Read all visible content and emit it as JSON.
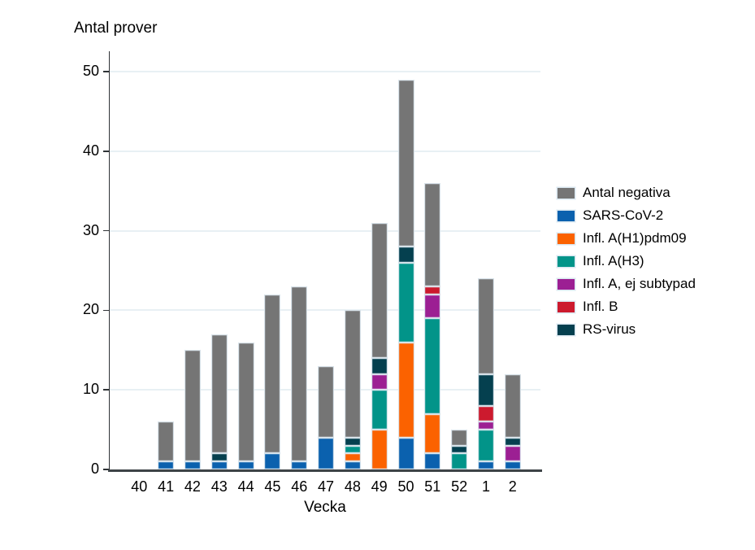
{
  "title": "Antal prover",
  "xlabel": "Vecka",
  "colors": {
    "gray": "#757575",
    "blue": "#0b61ae",
    "orange": "#fb6200",
    "teal": "#029489",
    "purple": "#9c1f93",
    "red": "#cc1a2e",
    "navy": "#05404f",
    "gridline": "#e8f0f4",
    "axis_y": "#2f3336",
    "axis_x": "#3d4347",
    "tick": "#2f3336",
    "text": "#000000"
  },
  "legend": [
    {
      "label": "Antal negativa",
      "color_key": "gray"
    },
    {
      "label": "SARS-CoV-2",
      "color_key": "blue"
    },
    {
      "label": "Infl. A(H1)pdm09",
      "color_key": "orange"
    },
    {
      "label": "Infl. A(H3)",
      "color_key": "teal"
    },
    {
      "label": "Infl. A, ej subtypad",
      "color_key": "purple"
    },
    {
      "label": "Infl. B",
      "color_key": "red"
    },
    {
      "label": "RS-virus",
      "color_key": "navy"
    }
  ],
  "chart_data": {
    "type": "bar",
    "stacked": true,
    "title": "Antal prover",
    "xlabel": "Vecka",
    "ylabel": "",
    "ylim": [
      0,
      50
    ],
    "yticks": [
      0,
      10,
      20,
      30,
      40,
      50
    ],
    "grid": true,
    "legend_position": "right",
    "categories": [
      "40",
      "41",
      "42",
      "43",
      "44",
      "45",
      "46",
      "47",
      "48",
      "49",
      "50",
      "51",
      "52",
      "1",
      "2"
    ],
    "series": [
      {
        "name": "SARS-CoV-2",
        "color_key": "blue",
        "values": [
          0,
          1,
          1,
          1,
          1,
          2,
          1,
          4,
          1,
          0,
          4,
          2,
          0,
          1,
          1
        ]
      },
      {
        "name": "Infl. A(H1)pdm09",
        "color_key": "orange",
        "values": [
          0,
          0,
          0,
          0,
          0,
          0,
          0,
          0,
          1,
          5,
          12,
          5,
          0,
          0,
          0
        ]
      },
      {
        "name": "Infl. A(H3)",
        "color_key": "teal",
        "values": [
          0,
          0,
          0,
          0,
          0,
          0,
          0,
          0,
          1,
          5,
          10,
          12,
          2,
          4,
          0
        ]
      },
      {
        "name": "Infl. A, ej subtypad",
        "color_key": "purple",
        "values": [
          0,
          0,
          0,
          0,
          0,
          0,
          0,
          0,
          0,
          2,
          0,
          3,
          0,
          1,
          2
        ]
      },
      {
        "name": "Infl. B",
        "color_key": "red",
        "values": [
          0,
          0,
          0,
          0,
          0,
          0,
          0,
          0,
          0,
          0,
          0,
          1,
          0,
          2,
          0
        ]
      },
      {
        "name": "RS-virus",
        "color_key": "navy",
        "values": [
          0,
          0,
          0,
          1,
          0,
          0,
          0,
          0,
          1,
          2,
          2,
          0,
          1,
          4,
          1
        ]
      },
      {
        "name": "Antal negativa",
        "color_key": "gray",
        "values": [
          0,
          5,
          14,
          15,
          15,
          20,
          22,
          9,
          16,
          17,
          21,
          13,
          2,
          12,
          8
        ]
      }
    ],
    "totals": [
      0,
      6,
      15,
      17,
      16,
      22,
      23,
      13,
      20,
      31,
      49,
      36,
      5,
      24,
      12
    ]
  }
}
